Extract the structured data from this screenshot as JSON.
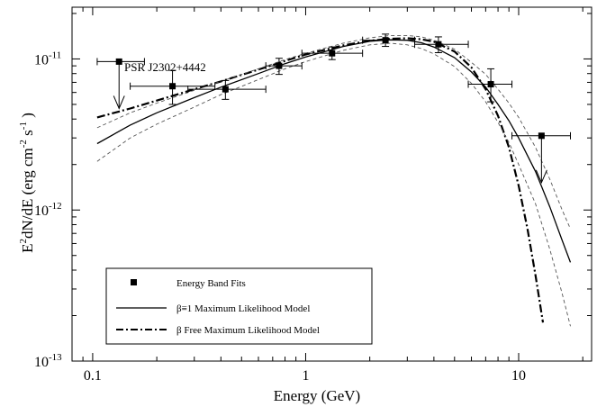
{
  "chart_data": {
    "type": "scatter",
    "x_scale": "log",
    "y_scale": "log",
    "xlim": [
      0.08,
      22
    ],
    "ylim": [
      1e-13,
      2.2e-11
    ],
    "xlabel": "Energy (GeV)",
    "ylabel": {
      "main": "E",
      "sup1": "2",
      "mid": "dN/dE (erg cm",
      "sup2": "-2",
      "mid2": " s",
      "sup3": "-1",
      "tail": " )"
    },
    "x_ticks": [
      {
        "value": 0.1,
        "label": "0.1"
      },
      {
        "value": 1,
        "label": "1"
      },
      {
        "value": 10,
        "label": "10"
      }
    ],
    "y_ticks": [
      {
        "value": 1e-13,
        "base": "10",
        "exp": "-13"
      },
      {
        "value": 1e-12,
        "base": "10",
        "exp": "-12"
      },
      {
        "value": 1e-11,
        "base": "10",
        "exp": "-11"
      }
    ],
    "annotation": "PSR J2302+4442",
    "grid": false,
    "legend": {
      "placement": "bottom-left",
      "entries": [
        {
          "label": "Energy Band Fits",
          "style": "marker"
        },
        {
          "label": "β≡1 Maximum Likelihood Model",
          "style": "solid"
        },
        {
          "label": "β Free Maximum Likelihood Model",
          "style": "dashdot"
        }
      ]
    },
    "band_fits": [
      {
        "x": 0.237,
        "y": 6.6e-12,
        "xerr": [
          0.15,
          0.375
        ],
        "yerr": [
          5e-12,
          8.4e-12
        ]
      },
      {
        "x": 0.42,
        "y": 6.3e-12,
        "xerr": [
          0.28,
          0.65
        ],
        "yerr": [
          5.4e-12,
          7.2e-12
        ]
      },
      {
        "x": 0.75,
        "y": 9e-12,
        "xerr": [
          0.65,
          0.96
        ],
        "yerr": [
          7.9e-12,
          1.01e-11
        ]
      },
      {
        "x": 1.33,
        "y": 1.09e-11,
        "xerr": [
          0.96,
          1.85
        ],
        "yerr": [
          9.9e-12,
          1.2e-11
        ]
      },
      {
        "x": 2.37,
        "y": 1.33e-11,
        "xerr": [
          1.85,
          3.25
        ],
        "yerr": [
          1.21e-11,
          1.46e-11
        ]
      },
      {
        "x": 4.2,
        "y": 1.25e-11,
        "xerr": [
          3.25,
          5.8
        ],
        "yerr": [
          1.1e-11,
          1.4e-11
        ]
      },
      {
        "x": 7.4,
        "y": 6.8e-12,
        "xerr": [
          5.8,
          9.3
        ],
        "yerr": [
          5.2e-12,
          8.6e-12
        ]
      }
    ],
    "upper_limits": [
      {
        "x": 0.133,
        "y": 9.6e-12,
        "xerr": [
          0.105,
          0.175
        ]
      },
      {
        "x": 12.8,
        "y": 3.1e-12,
        "xerr": [
          9.3,
          17.5
        ]
      }
    ],
    "series": [
      {
        "name": "β≡1 Maximum Likelihood Model",
        "style": "solid",
        "x": [
          0.105,
          0.15,
          0.2,
          0.3,
          0.4,
          0.6,
          0.8,
          1.0,
          1.5,
          2.0,
          2.5,
          3.0,
          3.5,
          4.0,
          5.0,
          6.0,
          7.0,
          8.0,
          9.0,
          10.0,
          12.0,
          14.0,
          16.0,
          17.5
        ],
        "y": [
          2.75e-12,
          3.65e-12,
          4.4e-12,
          5.55e-12,
          6.5e-12,
          8e-12,
          9.3e-12,
          1.03e-11,
          1.21e-11,
          1.31e-11,
          1.34e-11,
          1.33e-11,
          1.28e-11,
          1.2e-11,
          1.02e-11,
          8.2e-12,
          6.5e-12,
          5e-12,
          3.9e-12,
          3e-12,
          1.8e-12,
          1.05e-12,
          6.3e-13,
          4.5e-13
        ]
      },
      {
        "name": "β Free Maximum Likelihood Model",
        "style": "dashdot",
        "x": [
          0.105,
          0.15,
          0.2,
          0.3,
          0.4,
          0.6,
          0.8,
          1.0,
          1.5,
          2.0,
          2.5,
          3.0,
          3.5,
          4.0,
          5.0,
          6.0,
          7.0,
          8.0,
          9.0,
          10.0,
          11.0,
          12.0,
          13.0
        ],
        "y": [
          4.1e-12,
          4.7e-12,
          5.3e-12,
          6.3e-12,
          7.1e-12,
          8.5e-12,
          9.7e-12,
          1.07e-11,
          1.23e-11,
          1.32e-11,
          1.36e-11,
          1.37e-11,
          1.35e-11,
          1.3e-11,
          1.12e-11,
          8.8e-12,
          6.3e-12,
          4.2e-12,
          2.6e-12,
          1.45e-12,
          7.5e-13,
          3.7e-13,
          1.8e-13
        ]
      },
      {
        "name": "Upper bound",
        "style": "dashed",
        "x": [
          0.105,
          0.15,
          0.2,
          0.3,
          0.4,
          0.6,
          0.8,
          1.0,
          1.5,
          2.0,
          2.5,
          3.0,
          3.5,
          4.0,
          5.0,
          6.0,
          7.0,
          8.0,
          9.0,
          10.0,
          12.0,
          14.0,
          16.0,
          17.5
        ],
        "y": [
          3.5e-12,
          4.4e-12,
          5.1e-12,
          6.2e-12,
          7.1e-12,
          8.6e-12,
          9.9e-12,
          1.09e-11,
          1.27e-11,
          1.38e-11,
          1.43e-11,
          1.43e-11,
          1.4e-11,
          1.33e-11,
          1.16e-11,
          9.5e-12,
          7.9e-12,
          6.3e-12,
          5.1e-12,
          4.1e-12,
          2.6e-12,
          1.6e-12,
          1e-12,
          7.5e-13
        ]
      },
      {
        "name": "Lower bound",
        "style": "dashed",
        "x": [
          0.105,
          0.15,
          0.2,
          0.3,
          0.4,
          0.6,
          0.8,
          1.0,
          1.5,
          2.0,
          2.5,
          3.0,
          3.5,
          4.0,
          5.0,
          6.0,
          7.0,
          8.0,
          9.0,
          10.0,
          12.0,
          14.0,
          16.0,
          17.5
        ],
        "y": [
          2.1e-12,
          3e-12,
          3.7e-12,
          4.8e-12,
          5.8e-12,
          7.3e-12,
          8.6e-12,
          9.6e-12,
          1.14e-11,
          1.24e-11,
          1.27e-11,
          1.24e-11,
          1.17e-11,
          1.08e-11,
          8.9e-12,
          6.9e-12,
          5.2e-12,
          3.8e-12,
          2.8e-12,
          2e-12,
          1.1e-12,
          5.5e-13,
          2.8e-13,
          1.7e-13
        ]
      }
    ]
  }
}
